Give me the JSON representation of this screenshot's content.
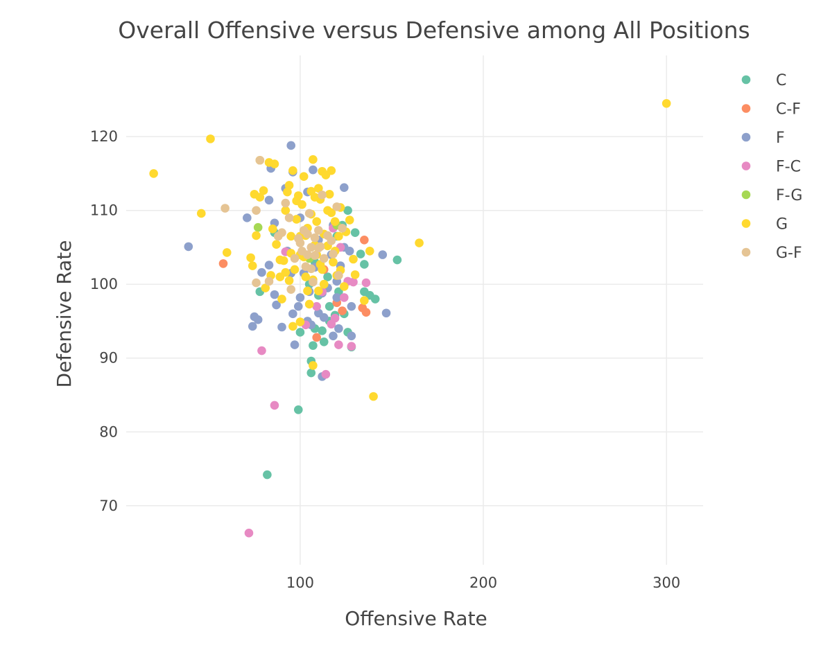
{
  "chart_data": {
    "type": "scatter",
    "title": "Overall Offensive versus Defensive among All Positions",
    "xlabel": "Offensive Rate",
    "ylabel": "Defensive Rate",
    "xlim": [
      5,
      320
    ],
    "ylim": [
      62,
      131
    ],
    "xticks": [
      100,
      200,
      300
    ],
    "yticks": [
      70,
      80,
      90,
      100,
      110,
      120
    ],
    "grid": true,
    "legend_position": "right",
    "series": [
      {
        "name": "C",
        "color": "#66c2a5",
        "points": [
          [
            82,
            74.2
          ],
          [
            99,
            83
          ],
          [
            106,
            89.6
          ],
          [
            106,
            88
          ],
          [
            107,
            91.7
          ],
          [
            108,
            94
          ],
          [
            112,
            93.7
          ],
          [
            113,
            92.2
          ],
          [
            116,
            97
          ],
          [
            119,
            95.8
          ],
          [
            121,
            99
          ],
          [
            124,
            96
          ],
          [
            126,
            93.5
          ],
          [
            128,
            91.5
          ],
          [
            130,
            107
          ],
          [
            133,
            104.1
          ],
          [
            135,
            102.7
          ],
          [
            135,
            99
          ],
          [
            138,
            98.5
          ],
          [
            141,
            98
          ],
          [
            153,
            103.3
          ],
          [
            126,
            110
          ],
          [
            120,
            106.5
          ],
          [
            86,
            107
          ],
          [
            78,
            99
          ],
          [
            100,
            93.5
          ],
          [
            110,
            98.5
          ],
          [
            115,
            101
          ],
          [
            123,
            108
          ],
          [
            108,
            103
          ],
          [
            105,
            100
          ],
          [
            116,
            95
          ]
        ]
      },
      {
        "name": "C-F",
        "color": "#fc8d62",
        "points": [
          [
            58,
            102.8
          ],
          [
            109,
            92.8
          ],
          [
            120,
            97.5
          ],
          [
            123,
            96.4
          ],
          [
            134,
            96.8
          ],
          [
            136,
            96.2
          ],
          [
            135,
            106
          ],
          [
            113,
            102
          ]
        ]
      },
      {
        "name": "F",
        "color": "#8da0cb",
        "points": [
          [
            39,
            105.1
          ],
          [
            71,
            109
          ],
          [
            74,
            94.3
          ],
          [
            75,
            95.6
          ],
          [
            77,
            95.2
          ],
          [
            79,
            101.6
          ],
          [
            83,
            102.6
          ],
          [
            83,
            111.4
          ],
          [
            84,
            115.7
          ],
          [
            86,
            108.3
          ],
          [
            86,
            98.6
          ],
          [
            87,
            97.2
          ],
          [
            90,
            94.2
          ],
          [
            92,
            113
          ],
          [
            95,
            118.8
          ],
          [
            96,
            115.2
          ],
          [
            96,
            96
          ],
          [
            97,
            91.8
          ],
          [
            99,
            97
          ],
          [
            100,
            98.2
          ],
          [
            102,
            101.5
          ],
          [
            104,
            95
          ],
          [
            105,
            99
          ],
          [
            106,
            94.5
          ],
          [
            107,
            115.5
          ],
          [
            108,
            102.3
          ],
          [
            110,
            96.1
          ],
          [
            112,
            87.5
          ],
          [
            113,
            95.5
          ],
          [
            115,
            99.5
          ],
          [
            117,
            104
          ],
          [
            118,
            93
          ],
          [
            120,
            100.4
          ],
          [
            121,
            94
          ],
          [
            122,
            102.5
          ],
          [
            124,
            113.1
          ],
          [
            124,
            105
          ],
          [
            127,
            104.5
          ],
          [
            128,
            97
          ],
          [
            128,
            93
          ],
          [
            145,
            104
          ],
          [
            147,
            96.1
          ],
          [
            110,
            106
          ],
          [
            100,
            109
          ],
          [
            93,
            104.5
          ],
          [
            118,
            108
          ],
          [
            104,
            112.5
          ],
          [
            112,
            98.8
          ],
          [
            120,
            98.2
          ],
          [
            95,
            101.5
          ]
        ]
      },
      {
        "name": "F-C",
        "color": "#e78ac3",
        "points": [
          [
            72,
            66.3
          ],
          [
            79,
            91
          ],
          [
            86,
            83.6
          ],
          [
            103,
            94.5
          ],
          [
            109,
            97
          ],
          [
            114,
            87.8
          ],
          [
            117,
            94.6
          ],
          [
            119,
            95.4
          ],
          [
            121,
            91.8
          ],
          [
            124,
            98.2
          ],
          [
            126,
            100.4
          ],
          [
            128,
            91.6
          ],
          [
            129,
            100.3
          ],
          [
            136,
            100.2
          ],
          [
            112,
            99
          ],
          [
            92,
            104.4
          ],
          [
            118,
            107.6
          ],
          [
            122,
            105
          ]
        ]
      },
      {
        "name": "F-G",
        "color": "#a6d854",
        "points": [
          [
            77,
            107.7
          ],
          [
            113,
            100
          ],
          [
            120,
            108
          ],
          [
            105,
            103.5
          ]
        ]
      },
      {
        "name": "G",
        "color": "#ffd92f",
        "points": [
          [
            20,
            115
          ],
          [
            46,
            109.6
          ],
          [
            51,
            119.7
          ],
          [
            60,
            104.3
          ],
          [
            73,
            103.6
          ],
          [
            74,
            102.5
          ],
          [
            75,
            112.2
          ],
          [
            76,
            106.6
          ],
          [
            78,
            111.8
          ],
          [
            78,
            116.8
          ],
          [
            80,
            112.7
          ],
          [
            81,
            99.5
          ],
          [
            83,
            116.5
          ],
          [
            84,
            101.2
          ],
          [
            85,
            107.5
          ],
          [
            86,
            116.3
          ],
          [
            87,
            105.4
          ],
          [
            89,
            101
          ],
          [
            90,
            98
          ],
          [
            91,
            103.2
          ],
          [
            92,
            110
          ],
          [
            93,
            112.5
          ],
          [
            94,
            113.4
          ],
          [
            95,
            106.5
          ],
          [
            96,
            94.3
          ],
          [
            96,
            115.4
          ],
          [
            98,
            108.8
          ],
          [
            99,
            112
          ],
          [
            100,
            94.9
          ],
          [
            100,
            104
          ],
          [
            101,
            110.8
          ],
          [
            102,
            114.6
          ],
          [
            103,
            106.6
          ],
          [
            104,
            99.1
          ],
          [
            105,
            97.3
          ],
          [
            106,
            112.6
          ],
          [
            107,
            116.9
          ],
          [
            107,
            89
          ],
          [
            108,
            105.3
          ],
          [
            109,
            108.5
          ],
          [
            110,
            99.1
          ],
          [
            111,
            111.5
          ],
          [
            112,
            115.3
          ],
          [
            113,
            100
          ],
          [
            114,
            114.8
          ],
          [
            115,
            105.2
          ],
          [
            116,
            112.2
          ],
          [
            117,
            115.4
          ],
          [
            118,
            103
          ],
          [
            119,
            108.5
          ],
          [
            120,
            101.2
          ],
          [
            121,
            106.5
          ],
          [
            122,
            110.4
          ],
          [
            124,
            99.7
          ],
          [
            125,
            107.1
          ],
          [
            127,
            108.7
          ],
          [
            129,
            103.4
          ],
          [
            130,
            101.3
          ],
          [
            135,
            97.8
          ],
          [
            138,
            104.5
          ],
          [
            140,
            84.8
          ],
          [
            165,
            105.6
          ],
          [
            300,
            124.5
          ],
          [
            97,
            102
          ],
          [
            103,
            101
          ],
          [
            109,
            104
          ],
          [
            94,
            100.5
          ],
          [
            112,
            102
          ],
          [
            106,
            109.5
          ],
          [
            100,
            106.5
          ],
          [
            115,
            110
          ],
          [
            89,
            103.3
          ],
          [
            104,
            107.6
          ],
          [
            110,
            113
          ],
          [
            119,
            104.5
          ],
          [
            98,
            111.3
          ],
          [
            107,
            100.6
          ],
          [
            113,
            106.8
          ],
          [
            95,
            104.2
          ],
          [
            102,
            103.7
          ],
          [
            108,
            111.8
          ],
          [
            92,
            101.6
          ],
          [
            111,
            102.7
          ],
          [
            117,
            109.7
          ],
          [
            122,
            101.9
          ]
        ]
      },
      {
        "name": "G-F",
        "color": "#e5c494",
        "points": [
          [
            59,
            110.3
          ],
          [
            76,
            110
          ],
          [
            76,
            100.2
          ],
          [
            78,
            116.8
          ],
          [
            83,
            100.4
          ],
          [
            88,
            106.5
          ],
          [
            90,
            107
          ],
          [
            92,
            111
          ],
          [
            94,
            109
          ],
          [
            95,
            99.3
          ],
          [
            97,
            103.5
          ],
          [
            99,
            106.2
          ],
          [
            101,
            104.5
          ],
          [
            102,
            107.3
          ],
          [
            103,
            102.4
          ],
          [
            104,
            106.8
          ],
          [
            105,
            109.6
          ],
          [
            106,
            105
          ],
          [
            107,
            100.3
          ],
          [
            108,
            103.9
          ],
          [
            110,
            107.3
          ],
          [
            111,
            105.1
          ],
          [
            112,
            112.1
          ],
          [
            113,
            103.5
          ],
          [
            115,
            106.6
          ],
          [
            117,
            105.9
          ],
          [
            118,
            104.1
          ],
          [
            120,
            110.5
          ],
          [
            121,
            101.2
          ],
          [
            123,
            107.6
          ],
          [
            104,
            104
          ],
          [
            108,
            106.3
          ],
          [
            100,
            105.6
          ],
          [
            106,
            102.1
          ],
          [
            110,
            104.9
          ]
        ]
      }
    ]
  }
}
